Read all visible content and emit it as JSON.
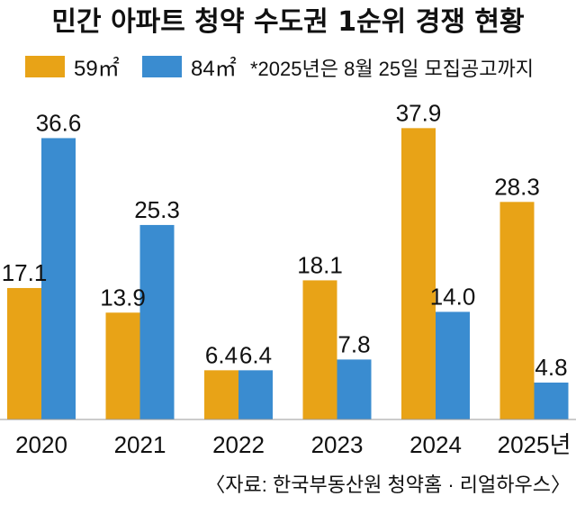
{
  "chart_data": {
    "type": "bar",
    "title": "민간 아파트 청약 수도권 1순위 경쟁 현황",
    "subtitle": "",
    "xlabel": "",
    "ylabel": "",
    "categories": [
      "2020",
      "2021",
      "2022",
      "2023",
      "2024",
      "2025년"
    ],
    "series": [
      {
        "name": "59㎡",
        "color": "#E8A317",
        "values": [
          17.1,
          13.9,
          6.4,
          18.1,
          37.9,
          28.3
        ],
        "labels": [
          "17.1",
          "13.9",
          "6.4",
          "18.1",
          "37.9",
          "28.3"
        ]
      },
      {
        "name": "84㎡",
        "color": "#3A8CD0",
        "values": [
          36.6,
          25.3,
          6.4,
          7.8,
          14.0,
          4.8
        ],
        "labels": [
          "36.6",
          "25.3",
          "6.4",
          "7.8",
          "14.0",
          "4.8"
        ]
      }
    ],
    "ylim": [
      0,
      40
    ],
    "grid": false,
    "legend_position": "top-left",
    "note": "*2025년은 8월 25일 모집공고까지",
    "source": "〈자료: 한국부동산원 청약홈 · 리얼하우스〉"
  }
}
